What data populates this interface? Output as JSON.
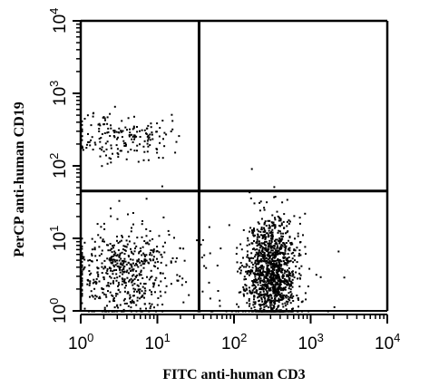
{
  "chart_data": {
    "type": "scatter",
    "title": "",
    "xlabel": "FITC anti-human CD3",
    "ylabel": "PerCP anti-human CD19",
    "x_scale": "log",
    "y_scale": "log",
    "xlim": [
      1,
      10000
    ],
    "ylim": [
      1,
      10000
    ],
    "x_ticks": [
      {
        "base": "10",
        "exp": "0"
      },
      {
        "base": "10",
        "exp": "1"
      },
      {
        "base": "10",
        "exp": "2"
      },
      {
        "base": "10",
        "exp": "3"
      },
      {
        "base": "10",
        "exp": "4"
      }
    ],
    "y_ticks": [
      {
        "base": "10",
        "exp": "0"
      },
      {
        "base": "10",
        "exp": "1"
      },
      {
        "base": "10",
        "exp": "2"
      },
      {
        "base": "10",
        "exp": "3"
      },
      {
        "base": "10",
        "exp": "4"
      }
    ],
    "quadrant_gates": {
      "x": 35,
      "y": 45
    },
    "grid": false,
    "legend": "none",
    "point_color": "#000000",
    "populations": [
      {
        "x_center": 300,
        "y_center": 3.5,
        "x_spread_log": 0.16,
        "y_spread_log": 0.38,
        "count": 1300,
        "seed": 11
      },
      {
        "x_center": 3.2,
        "y_center": 3.5,
        "x_spread_log": 0.32,
        "y_spread_log": 0.32,
        "count": 520,
        "seed": 23
      },
      {
        "x_center": 3.2,
        "y_center": 260,
        "x_spread_log": 0.32,
        "y_spread_log": 0.17,
        "count": 190,
        "seed": 37
      },
      {
        "x_center": 40,
        "y_center": 3,
        "x_spread_log": 0.9,
        "y_spread_log": 0.5,
        "count": 90,
        "seed": 53
      }
    ]
  }
}
